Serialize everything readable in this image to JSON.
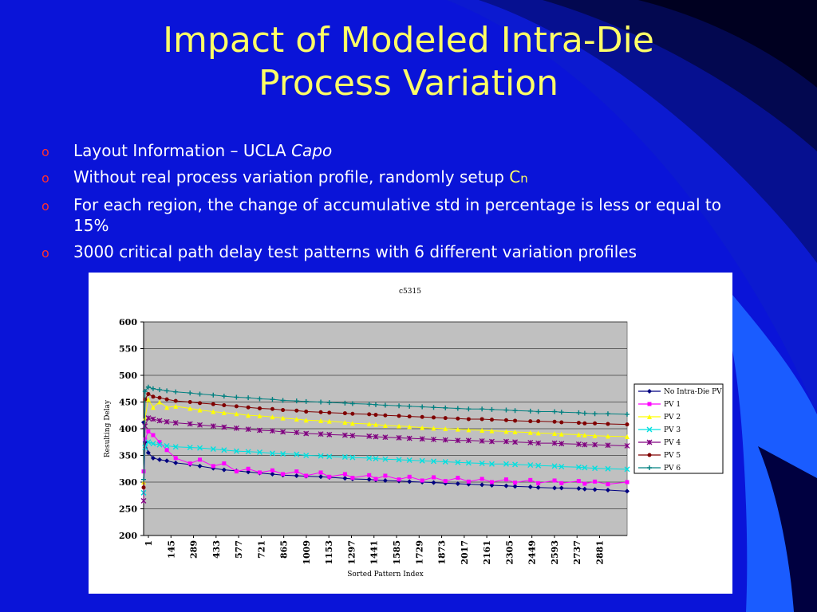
{
  "slide": {
    "title_line1": "Impact of Modeled Intra-Die",
    "title_line2": "Process Variation",
    "bullet_glyph": "o",
    "bullets": [
      {
        "text": "Layout Information – UCLA ",
        "emph": "Capo"
      },
      {
        "text": "Without real process variation profile, randomly setup ",
        "var": "C",
        "sub": "n"
      },
      {
        "text": "For each region, the change of accumulative std in percentage is less or equal to 15%"
      },
      {
        "text": "3000 critical path delay test patterns with 6 different variation profiles"
      }
    ]
  },
  "colors": {
    "background": "#0a14d8",
    "title": "#ffff66",
    "bullet_marker": "#ff3030",
    "plot_area": "#c0c0c0"
  },
  "chart_data": {
    "type": "scatter",
    "title": "c5315",
    "xlabel": "Sorted Pattern Index",
    "ylabel": "Resulting Delay",
    "ylim": [
      200,
      600
    ],
    "yticks": [
      200,
      250,
      300,
      350,
      400,
      450,
      500,
      550,
      600
    ],
    "xlim": [
      1,
      3000
    ],
    "xtick_labels": [
      "1",
      "145",
      "289",
      "433",
      "577",
      "721",
      "865",
      "1009",
      "1153",
      "1297",
      "1441",
      "1585",
      "1729",
      "1873",
      "2017",
      "2161",
      "2305",
      "2449",
      "2593",
      "2737",
      "2881"
    ],
    "grid": {
      "horizontal": true,
      "vertical": false
    },
    "legend_position": "right",
    "x": [
      1,
      10,
      30,
      60,
      100,
      145,
      200,
      289,
      350,
      433,
      500,
      577,
      650,
      721,
      800,
      865,
      950,
      1009,
      1100,
      1153,
      1250,
      1297,
      1400,
      1441,
      1500,
      1585,
      1650,
      1729,
      1800,
      1873,
      1950,
      2017,
      2100,
      2161,
      2250,
      2305,
      2400,
      2449,
      2550,
      2593,
      2700,
      2737,
      2800,
      2881,
      3000
    ],
    "series": [
      {
        "name": "No Intra-Die PV",
        "color": "#000080",
        "marker": "diamond",
        "values": [
          412,
          375,
          355,
          345,
          342,
          340,
          336,
          333,
          330,
          326,
          323,
          321,
          319,
          317,
          315,
          313,
          312,
          311,
          310,
          309,
          307,
          306,
          305,
          304,
          303,
          302,
          301,
          300,
          299,
          298,
          297,
          296,
          295,
          294,
          293,
          292,
          291,
          290,
          289,
          289,
          288,
          287,
          286,
          285,
          283
        ]
      },
      {
        "name": "PV 1",
        "color": "#ff00ff",
        "marker": "square",
        "values": [
          320,
          380,
          395,
          388,
          375,
          360,
          345,
          335,
          342,
          330,
          335,
          320,
          325,
          318,
          322,
          315,
          320,
          312,
          318,
          310,
          315,
          308,
          313,
          306,
          312,
          305,
          310,
          303,
          309,
          302,
          308,
          301,
          306,
          300,
          305,
          299,
          304,
          298,
          303,
          298,
          302,
          297,
          301,
          296,
          300
        ]
      },
      {
        "name": "PV 2",
        "color": "#ffff00",
        "marker": "triangle",
        "values": [
          300,
          420,
          455,
          440,
          450,
          440,
          442,
          438,
          435,
          432,
          430,
          428,
          425,
          424,
          422,
          420,
          418,
          416,
          415,
          414,
          412,
          410,
          409,
          408,
          406,
          405,
          404,
          402,
          401,
          400,
          399,
          398,
          397,
          396,
          395,
          394,
          393,
          392,
          391,
          390,
          389,
          388,
          387,
          386,
          385
        ]
      },
      {
        "name": "PV 3",
        "color": "#00e0e0",
        "marker": "x",
        "values": [
          280,
          365,
          375,
          372,
          370,
          368,
          366,
          365,
          364,
          362,
          360,
          358,
          357,
          356,
          354,
          353,
          352,
          350,
          349,
          348,
          347,
          346,
          345,
          344,
          343,
          342,
          341,
          340,
          339,
          338,
          337,
          336,
          335,
          334,
          334,
          333,
          332,
          331,
          330,
          329,
          328,
          327,
          326,
          325,
          324
        ]
      },
      {
        "name": "PV 4",
        "color": "#800080",
        "marker": "star",
        "values": [
          265,
          405,
          420,
          418,
          415,
          413,
          411,
          409,
          407,
          405,
          403,
          401,
          399,
          397,
          396,
          394,
          393,
          391,
          390,
          389,
          388,
          387,
          386,
          385,
          384,
          383,
          382,
          381,
          380,
          379,
          378,
          378,
          377,
          376,
          376,
          375,
          374,
          373,
          373,
          372,
          371,
          370,
          370,
          369,
          368
        ]
      },
      {
        "name": "PV 5",
        "color": "#800000",
        "marker": "circle",
        "values": [
          290,
          455,
          465,
          460,
          458,
          455,
          452,
          450,
          448,
          446,
          444,
          442,
          440,
          438,
          437,
          435,
          434,
          432,
          431,
          430,
          429,
          428,
          427,
          426,
          425,
          424,
          423,
          422,
          421,
          420,
          419,
          418,
          418,
          417,
          416,
          415,
          414,
          414,
          413,
          412,
          411,
          410,
          410,
          409,
          408
        ]
      },
      {
        "name": "PV 6",
        "color": "#008080",
        "marker": "plus",
        "values": [
          305,
          470,
          478,
          475,
          473,
          471,
          469,
          467,
          465,
          463,
          461,
          459,
          458,
          456,
          455,
          453,
          452,
          451,
          450,
          449,
          448,
          447,
          446,
          445,
          444,
          443,
          442,
          441,
          440,
          439,
          438,
          437,
          437,
          436,
          435,
          434,
          433,
          432,
          432,
          431,
          430,
          429,
          428,
          428,
          427
        ]
      }
    ]
  }
}
